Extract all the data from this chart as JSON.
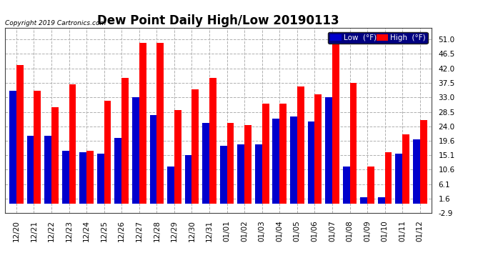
{
  "title": "Dew Point Daily High/Low 20190113",
  "copyright": "Copyright 2019 Cartronics.com",
  "categories": [
    "12/20",
    "12/21",
    "12/22",
    "12/23",
    "12/24",
    "12/25",
    "12/26",
    "12/27",
    "12/28",
    "12/29",
    "12/30",
    "12/31",
    "01/01",
    "01/02",
    "01/03",
    "01/04",
    "01/05",
    "01/06",
    "01/07",
    "01/08",
    "01/09",
    "01/10",
    "01/11",
    "01/12"
  ],
  "high_values": [
    43.0,
    35.0,
    30.0,
    37.0,
    16.5,
    32.0,
    39.0,
    50.0,
    50.0,
    29.0,
    35.5,
    39.0,
    25.0,
    24.5,
    31.0,
    31.0,
    36.5,
    34.0,
    50.0,
    37.5,
    11.5,
    16.0,
    21.5,
    26.0
  ],
  "low_values": [
    35.0,
    21.0,
    21.0,
    16.5,
    16.0,
    15.5,
    20.5,
    33.0,
    27.5,
    11.5,
    15.0,
    25.0,
    18.0,
    18.5,
    18.5,
    26.5,
    27.0,
    25.5,
    33.0,
    11.5,
    2.0,
    2.0,
    15.5,
    20.0
  ],
  "high_color": "#ff0000",
  "low_color": "#0000cc",
  "bg_color": "#ffffff",
  "grid_color": "#b0b0b0",
  "ylim_min": -2.9,
  "ylim_max": 54.5,
  "ytick_vals": [
    -2.9,
    1.6,
    6.1,
    10.6,
    15.1,
    19.6,
    24.0,
    28.5,
    33.0,
    37.5,
    42.0,
    46.5,
    51.0
  ],
  "ytick_labels": [
    "-2.9",
    "1.6",
    "6.1",
    "10.6",
    "15.1",
    "19.6",
    "24.0",
    "28.5",
    "33.0",
    "37.5",
    "42.0",
    "46.5",
    "51.0"
  ],
  "bar_width": 0.4,
  "title_fontsize": 12,
  "tick_fontsize": 7.5,
  "legend_low_label": "Low  (°F)",
  "legend_high_label": "High  (°F)"
}
